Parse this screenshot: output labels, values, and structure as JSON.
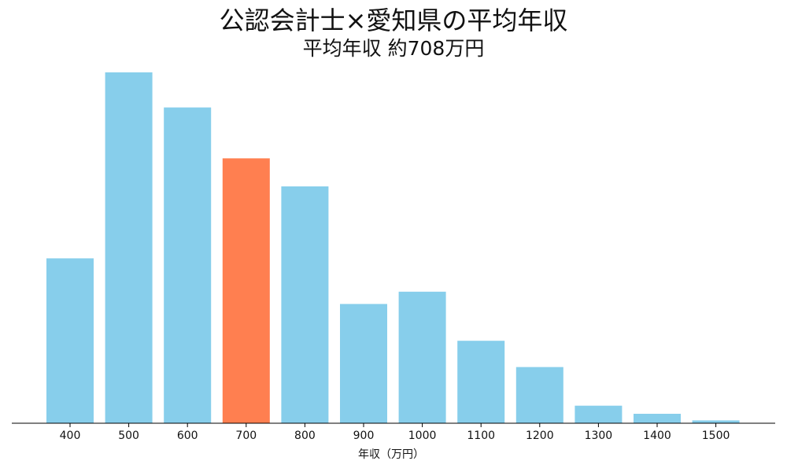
{
  "chart_data": {
    "type": "bar",
    "title": "公認会計士×愛知県の平均年収",
    "subtitle": "平均年収 約708万円",
    "xlabel": "年収（万円）",
    "ylabel": "",
    "categories": [
      "400",
      "500",
      "600",
      "700",
      "800",
      "900",
      "1000",
      "1100",
      "1200",
      "1300",
      "1400",
      "1500"
    ],
    "values": [
      47,
      100,
      90,
      75.5,
      67.5,
      34,
      37.5,
      23.5,
      16,
      5,
      2.7,
      0.8
    ],
    "ylim": [
      0,
      100
    ],
    "highlight_category": "700",
    "colors": {
      "bar": "#87ceeb",
      "highlight": "#ff7f50",
      "axis": "#000000"
    },
    "grid": false,
    "legend": "none"
  }
}
